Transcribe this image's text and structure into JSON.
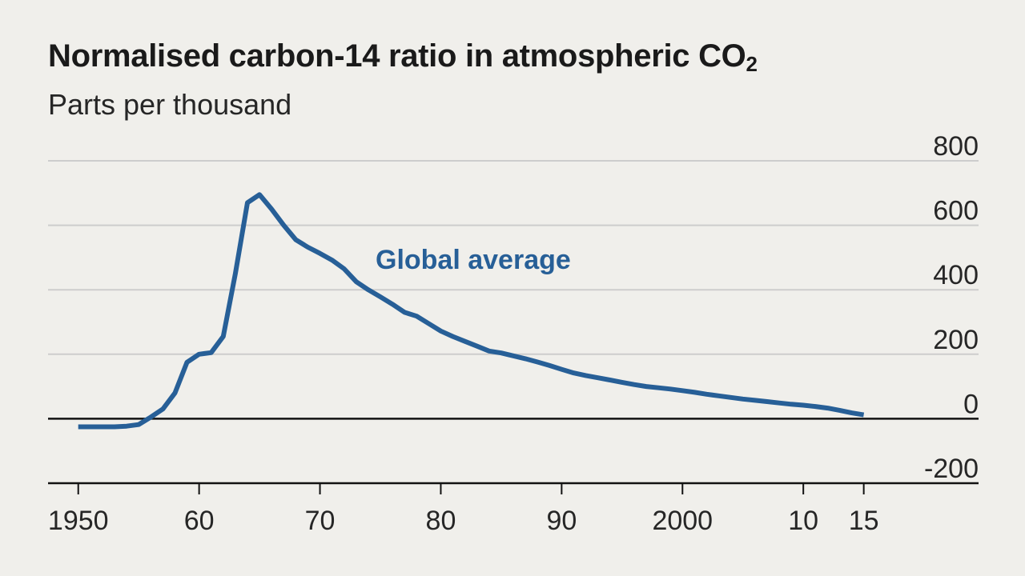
{
  "title_main": "Normalised carbon-14 ratio in atmospheric CO",
  "title_sub": "2",
  "subtitle": "Parts per thousand",
  "colors": {
    "line": "#275f97",
    "grid": "#cdcdcd",
    "baseline": "#121212",
    "background": "#f0efeb"
  },
  "chart_data": {
    "type": "line",
    "title": "Normalised carbon-14 ratio in atmospheric CO2",
    "ylabel": "Parts per thousand",
    "xlabel": "",
    "xlim": [
      1947.5,
      2024.5
    ],
    "ylim": [
      -200,
      800
    ],
    "yticks": [
      800,
      600,
      400,
      200,
      0,
      -200
    ],
    "ytick_labels": [
      "800",
      "600",
      "400",
      "200",
      "0",
      "-200"
    ],
    "xticks": [
      1950,
      1960,
      1970,
      1980,
      1990,
      2000,
      2010,
      2015
    ],
    "xtick_labels": [
      "1950",
      "60",
      "70",
      "80",
      "90",
      "2000",
      "10",
      "15"
    ],
    "grid": true,
    "series": [
      {
        "name": "Global average",
        "label_position": "above-right of peak",
        "x": [
          1950,
          1951,
          1952,
          1953,
          1954,
          1955,
          1956,
          1957,
          1958,
          1959,
          1960,
          1961,
          1962,
          1963,
          1964,
          1965,
          1966,
          1967,
          1968,
          1969,
          1970,
          1971,
          1972,
          1973,
          1974,
          1975,
          1976,
          1977,
          1978,
          1979,
          1980,
          1981,
          1982,
          1983,
          1984,
          1985,
          1986,
          1987,
          1988,
          1989,
          1990,
          1991,
          1992,
          1993,
          1994,
          1995,
          1996,
          1997,
          1998,
          1999,
          2000,
          2001,
          2002,
          2003,
          2004,
          2005,
          2006,
          2007,
          2008,
          2009,
          2010,
          2011,
          2012,
          2013,
          2014,
          2015
        ],
        "values": [
          -25,
          -25,
          -25,
          -25,
          -23,
          -18,
          5,
          30,
          80,
          175,
          200,
          205,
          255,
          450,
          670,
          695,
          650,
          600,
          555,
          532,
          513,
          492,
          465,
          425,
          400,
          378,
          355,
          330,
          318,
          295,
          272,
          255,
          240,
          225,
          210,
          204,
          195,
          186,
          176,
          165,
          153,
          142,
          134,
          127,
          120,
          113,
          106,
          100,
          96,
          92,
          87,
          82,
          76,
          71,
          66,
          61,
          57,
          53,
          49,
          45,
          42,
          38,
          33,
          26,
          18,
          12
        ]
      }
    ]
  }
}
